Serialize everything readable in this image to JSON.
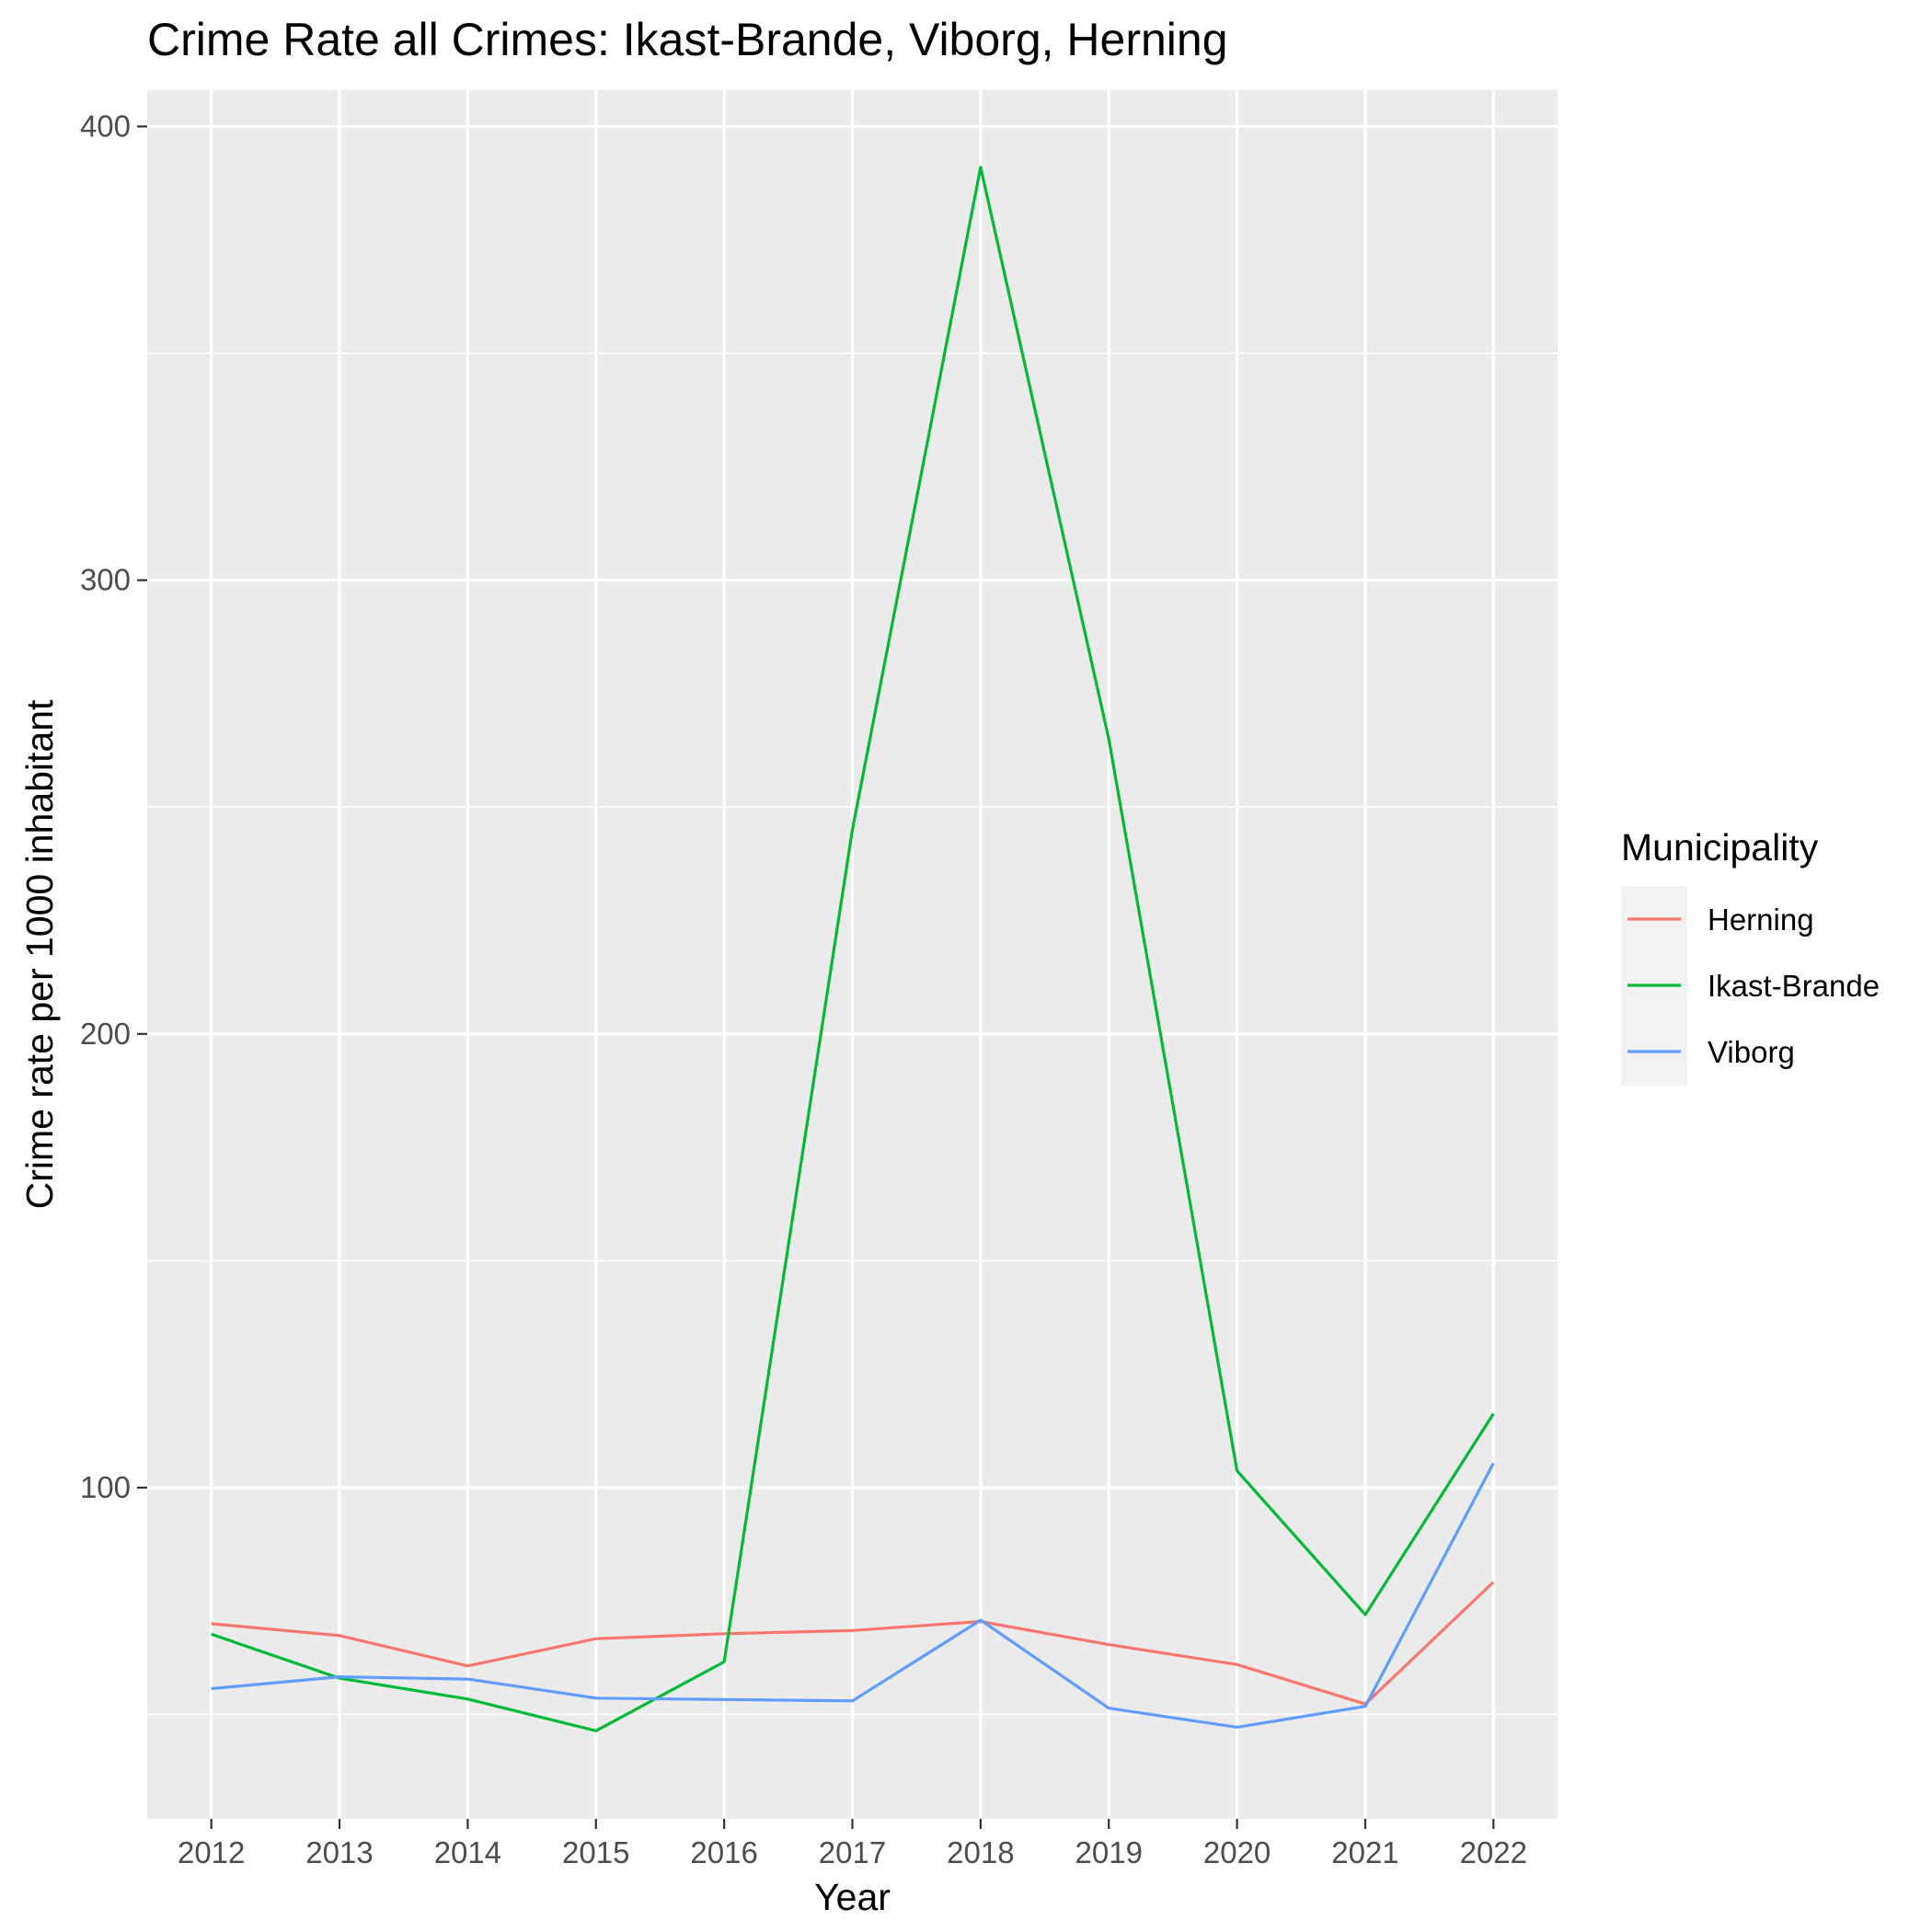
{
  "chart_data": {
    "type": "line",
    "title": "Crime Rate all Crimes: Ikast-Brande, Viborg, Herning",
    "xlabel": "Year",
    "ylabel": "Crime rate per 1000 inhabitant",
    "x": [
      2012,
      2013,
      2014,
      2015,
      2016,
      2017,
      2018,
      2019,
      2020,
      2021,
      2022
    ],
    "xlim": [
      2011.5,
      2022.5
    ],
    "ylim": [
      27,
      408
    ],
    "y_ticks": [
      100,
      200,
      300,
      400
    ],
    "grid": true,
    "legend": {
      "title": "Municipality",
      "position": "right"
    },
    "series": [
      {
        "name": "Herning",
        "color": "#F8766D",
        "values": [
          70,
          67.4,
          60.7,
          66.7,
          67.8,
          68.5,
          70.5,
          65.4,
          61,
          52.3,
          79.2
        ]
      },
      {
        "name": "Ikast-Brande",
        "color": "#00BA38",
        "values": [
          67.7,
          58,
          53.4,
          46.4,
          61.6,
          245,
          391,
          265,
          103.7,
          72,
          116.3
        ]
      },
      {
        "name": "Viborg",
        "color": "#619CFF",
        "values": [
          55.7,
          58.3,
          57.8,
          53.6,
          53.3,
          53,
          70.8,
          51.4,
          47.2,
          51.8,
          105.4
        ]
      }
    ]
  }
}
